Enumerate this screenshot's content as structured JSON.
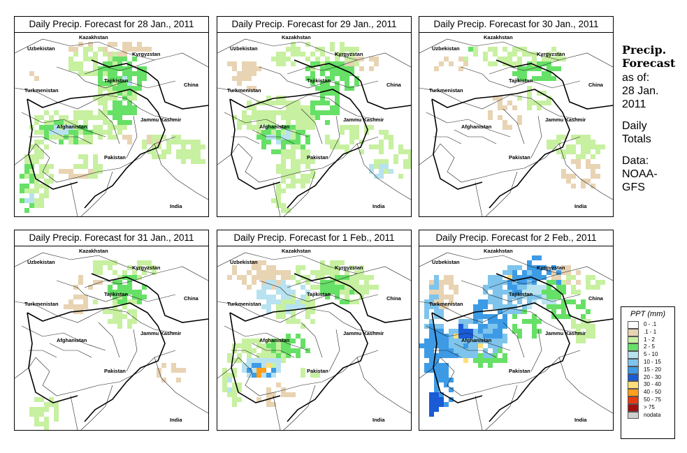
{
  "panels": [
    {
      "title": "Daily Precip. Forecast for  28 Jan., 2011",
      "pattern": "p1"
    },
    {
      "title": "Daily Precip. Forecast for  29 Jan., 2011",
      "pattern": "p2"
    },
    {
      "title": "Daily Precip. Forecast for  30 Jan., 2011",
      "pattern": "p3"
    },
    {
      "title": "Daily Precip. Forecast for  31 Jan., 2011",
      "pattern": "p4"
    },
    {
      "title": "Daily Precip. Forecast for  1 Feb., 2011",
      "pattern": "p5"
    },
    {
      "title": "Daily Precip. Forecast for  2 Feb., 2011",
      "pattern": "p6"
    }
  ],
  "map_labels": {
    "kazakhstan": "Kazakhstan",
    "uzbekistan": "Uzbekistan",
    "kyrgyzstan": "Kyrgyzstan",
    "tajikistan": "Tajikistan",
    "turkmenistan": "Turkmenistan",
    "china": "China",
    "afghanistan": "Afghanistan",
    "jammu_kashmir": "Jammu Kashmir",
    "pakistan": "Pakistan",
    "india": "India"
  },
  "sidebar": {
    "title_line1": "Precip.",
    "title_line2": "Forecast",
    "asof_line1": "as of:",
    "asof_line2": "28 Jan.",
    "asof_line3": "2011",
    "totals_line1": "Daily",
    "totals_line2": "Totals",
    "data_line1": "Data:",
    "data_line2": "NOAA-",
    "data_line3": "GFS"
  },
  "legend": {
    "title": "PPT (mm)",
    "items": [
      {
        "label": "0 - .1",
        "color": "#ffffff"
      },
      {
        "label": ".1 - 1",
        "color": "#e8d3b3"
      },
      {
        "label": "1 - 2",
        "color": "#c7f0a0"
      },
      {
        "label": "2 - 5",
        "color": "#66e066"
      },
      {
        "label": "5 - 10",
        "color": "#b8e2f0"
      },
      {
        "label": "10 - 15",
        "color": "#7ec4ec"
      },
      {
        "label": "15 - 20",
        "color": "#3d9be6"
      },
      {
        "label": "20 - 30",
        "color": "#1a5bd6"
      },
      {
        "label": "30 - 40",
        "color": "#ffdf7a"
      },
      {
        "label": "40 - 50",
        "color": "#ff9f1a"
      },
      {
        "label": "50 - 75",
        "color": "#e83a12"
      },
      {
        "label": "> 75",
        "color": "#a31010"
      },
      {
        "label": "nodata",
        "color": "#cfcfcf"
      }
    ]
  }
}
